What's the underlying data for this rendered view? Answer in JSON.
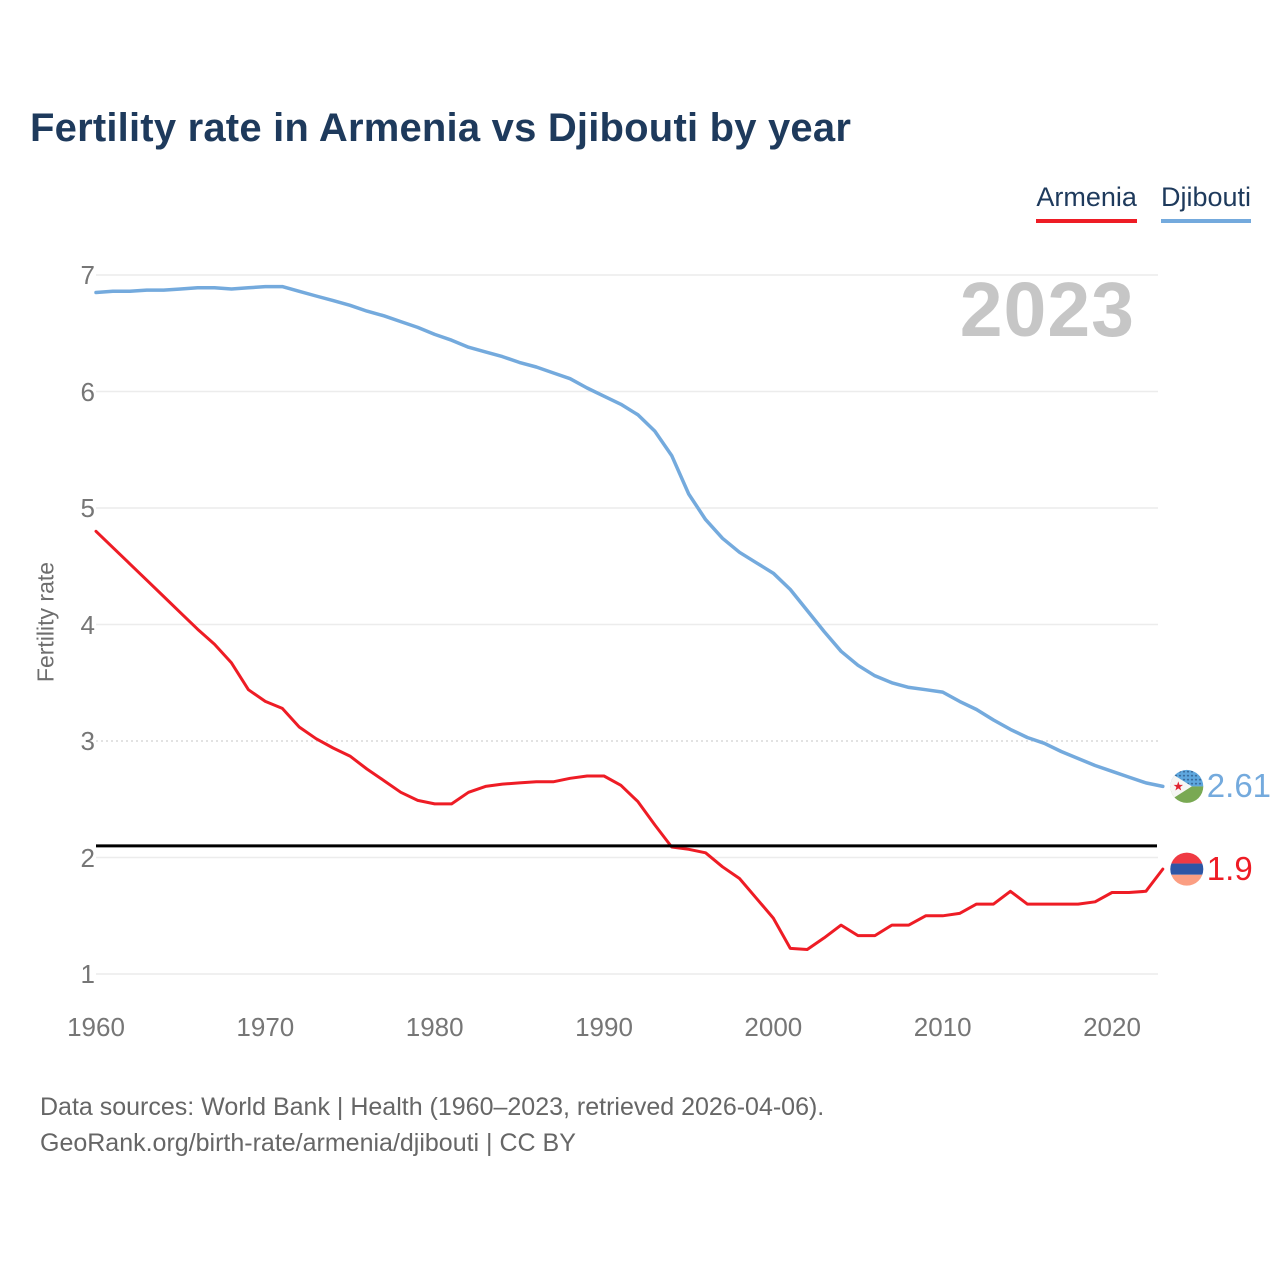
{
  "title": "Fertility rate in Armenia vs Djibouti by year",
  "watermark_year": "2023",
  "legend": [
    {
      "label": "Armenia",
      "color": "#ee1c25"
    },
    {
      "label": "Djibouti",
      "color": "#74aadd"
    }
  ],
  "y_axis": {
    "label": "Fertility rate",
    "ticks": [
      7,
      6,
      5,
      4,
      3,
      2,
      1
    ]
  },
  "x_axis": {
    "ticks": [
      1960,
      1970,
      1980,
      1990,
      2000,
      2010,
      2020
    ]
  },
  "reference_line": {
    "value": 2.1,
    "color": "#000000"
  },
  "end_labels": {
    "djibouti": {
      "value": "2.61",
      "color": "#74aadd",
      "flag": "djibouti-flag"
    },
    "armenia": {
      "value": "1.9",
      "color": "#ee1c25",
      "flag": "armenia-flag"
    }
  },
  "footer": {
    "line1": "Data sources: World Bank | Health (1960–2023, retrieved 2026-04-06).",
    "line2": "GeoRank.org/birth-rate/armenia/djibouti | CC BY"
  },
  "chart_data": {
    "type": "line",
    "title": "Fertility rate in Armenia vs Djibouti by year",
    "xlabel": "",
    "ylabel": "Fertility rate",
    "xlim": [
      1960,
      2023
    ],
    "ylim": [
      1,
      7
    ],
    "grid": "horizontal",
    "legend_position": "top-right",
    "annotations": {
      "replacement_level_line": 2.1,
      "year_watermark": "2023"
    },
    "x": [
      1960,
      1961,
      1962,
      1963,
      1964,
      1965,
      1966,
      1967,
      1968,
      1969,
      1970,
      1971,
      1972,
      1973,
      1974,
      1975,
      1976,
      1977,
      1978,
      1979,
      1980,
      1981,
      1982,
      1983,
      1984,
      1985,
      1986,
      1987,
      1988,
      1989,
      1990,
      1991,
      1992,
      1993,
      1994,
      1995,
      1996,
      1997,
      1998,
      1999,
      2000,
      2001,
      2002,
      2003,
      2004,
      2005,
      2006,
      2007,
      2008,
      2009,
      2010,
      2011,
      2012,
      2013,
      2014,
      2015,
      2016,
      2017,
      2018,
      2019,
      2020,
      2021,
      2022,
      2023
    ],
    "series": [
      {
        "name": "Armenia",
        "color": "#ee1c25",
        "width": 3,
        "values": [
          4.8,
          4.66,
          4.52,
          4.38,
          4.24,
          4.1,
          3.96,
          3.83,
          3.67,
          3.44,
          3.34,
          3.28,
          3.12,
          3.02,
          2.94,
          2.87,
          2.76,
          2.66,
          2.56,
          2.49,
          2.46,
          2.46,
          2.56,
          2.61,
          2.63,
          2.64,
          2.65,
          2.65,
          2.68,
          2.7,
          2.7,
          2.62,
          2.48,
          2.28,
          2.09,
          2.07,
          2.04,
          1.92,
          1.82,
          1.65,
          1.48,
          1.22,
          1.21,
          1.31,
          1.42,
          1.33,
          1.33,
          1.42,
          1.42,
          1.5,
          1.5,
          1.52,
          1.6,
          1.6,
          1.71,
          1.6,
          1.6,
          1.6,
          1.6,
          1.62,
          1.7,
          1.7,
          1.71,
          1.9
        ]
      },
      {
        "name": "Djibouti",
        "color": "#74aadd",
        "width": 3.5,
        "values": [
          6.85,
          6.86,
          6.86,
          6.87,
          6.87,
          6.88,
          6.89,
          6.89,
          6.88,
          6.89,
          6.9,
          6.9,
          6.86,
          6.82,
          6.78,
          6.74,
          6.69,
          6.65,
          6.6,
          6.55,
          6.49,
          6.44,
          6.38,
          6.34,
          6.3,
          6.25,
          6.21,
          6.16,
          6.11,
          6.03,
          5.96,
          5.89,
          5.8,
          5.66,
          5.45,
          5.12,
          4.9,
          4.74,
          4.62,
          4.53,
          4.44,
          4.3,
          4.12,
          3.94,
          3.77,
          3.65,
          3.56,
          3.5,
          3.46,
          3.44,
          3.42,
          3.34,
          3.27,
          3.18,
          3.1,
          3.03,
          2.98,
          2.91,
          2.85,
          2.79,
          2.74,
          2.69,
          2.64,
          2.61
        ]
      }
    ]
  }
}
